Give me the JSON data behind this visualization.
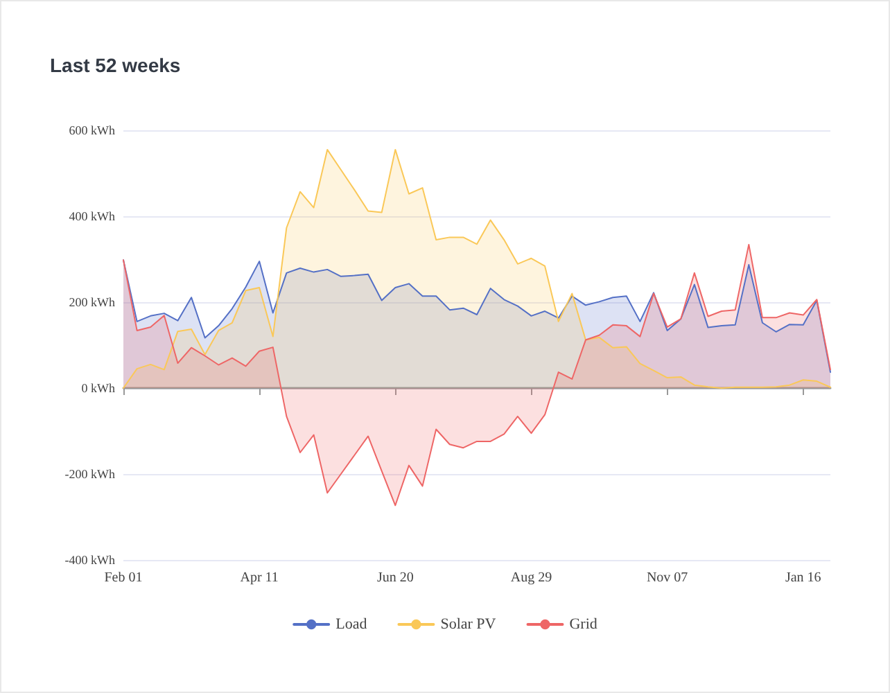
{
  "chart_data": {
    "type": "area",
    "title": "Last 52 weeks",
    "categories": [
      "Feb 01",
      null,
      null,
      null,
      null,
      null,
      null,
      null,
      null,
      null,
      "Apr 11",
      null,
      null,
      null,
      null,
      null,
      null,
      null,
      null,
      null,
      "Jun 20",
      null,
      null,
      null,
      null,
      null,
      null,
      null,
      null,
      null,
      "Aug 29",
      null,
      null,
      null,
      null,
      null,
      null,
      null,
      null,
      null,
      "Nov 07",
      null,
      null,
      null,
      null,
      null,
      null,
      null,
      null,
      null,
      "Jan 16",
      null,
      null
    ],
    "series": [
      {
        "name": "Load",
        "color": "#5470c6",
        "values": [
          298,
          155,
          168,
          174,
          157,
          211,
          117,
          145,
          185,
          235,
          295,
          175,
          268,
          279,
          270,
          276,
          260,
          262,
          265,
          204,
          234,
          243,
          214,
          214,
          182,
          186,
          171,
          232,
          206,
          191,
          168,
          179,
          163,
          214,
          193,
          201,
          211,
          214,
          155,
          222,
          134,
          161,
          241,
          141,
          145,
          147,
          287,
          152,
          131,
          148,
          147,
          204,
          37
        ]
      },
      {
        "name": "Solar PV",
        "color": "#fac858",
        "values": [
          0,
          45,
          55,
          43,
          132,
          137,
          78,
          134,
          152,
          227,
          234,
          120,
          373,
          457,
          420,
          555,
          508,
          461,
          412,
          409,
          555,
          452,
          466,
          345,
          351,
          351,
          335,
          391,
          345,
          289,
          302,
          284,
          155,
          220,
          112,
          118,
          94,
          96,
          57,
          41,
          24,
          26,
          7,
          3,
          0,
          2,
          2,
          2,
          3,
          7,
          19,
          16,
          2
        ]
      },
      {
        "name": "Grid",
        "color": "#ee6666",
        "values": [
          298,
          134,
          142,
          169,
          58,
          94,
          75,
          54,
          70,
          51,
          86,
          95,
          -66,
          -150,
          -109,
          -244,
          -200,
          -156,
          -112,
          -193,
          -273,
          -180,
          -228,
          -96,
          -131,
          -139,
          -124,
          -124,
          -107,
          -66,
          -105,
          -62,
          37,
          21,
          112,
          123,
          147,
          145,
          120,
          220,
          142,
          161,
          268,
          167,
          179,
          182,
          334,
          164,
          164,
          175,
          170,
          206,
          43
        ]
      }
    ],
    "ylim": [
      -400,
      600
    ],
    "yticks": [
      {
        "value": -400,
        "label": "-400 kWh"
      },
      {
        "value": -200,
        "label": "-200 kWh"
      },
      {
        "value": 0,
        "label": "0 kWh"
      },
      {
        "value": 200,
        "label": "200 kWh"
      },
      {
        "value": 400,
        "label": "400 kWh"
      },
      {
        "value": 600,
        "label": "600 kWh"
      }
    ],
    "grid": "y",
    "legend": "bottom",
    "marker": "none"
  }
}
